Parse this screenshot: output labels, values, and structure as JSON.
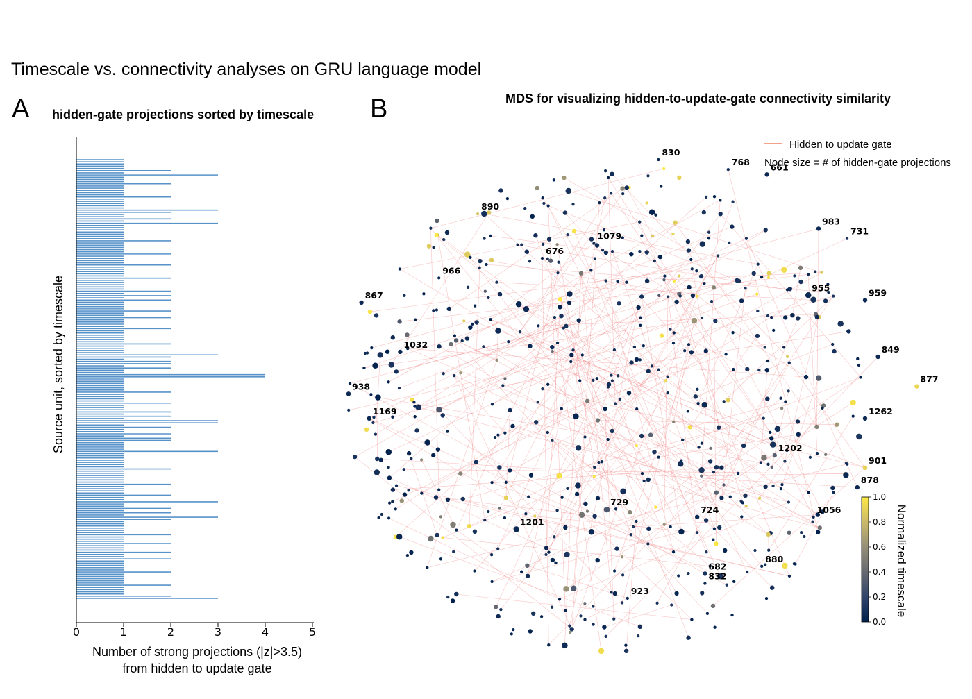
{
  "figure": {
    "title": "Timescale vs. connectivity analyses on GRU language model",
    "panels": [
      {
        "letter": "A",
        "title": "hidden-gate projections sorted by timescale"
      },
      {
        "letter": "B",
        "title": "MDS for visualizing hidden-to-update-gate connectivity similarity"
      }
    ]
  },
  "chart_data": [
    {
      "type": "bar",
      "orientation": "horizontal",
      "title": "hidden-gate projections sorted by timescale",
      "xlabel_lines": [
        "Number of strong projections (|z|>3.5)",
        "from hidden to update gate"
      ],
      "ylabel": "Source unit, sorted by timescale",
      "xlim": [
        0,
        5
      ],
      "xticks": [
        "0",
        "1",
        "2",
        "3",
        "4",
        "5"
      ],
      "color": "#3a80c0",
      "values": [
        1,
        1,
        1,
        1,
        1,
        2,
        1,
        3,
        1,
        1,
        1,
        2,
        1,
        1,
        1,
        1,
        1,
        2,
        1,
        1,
        1,
        1,
        1,
        3,
        2,
        1,
        1,
        2,
        1,
        3,
        1,
        1,
        1,
        1,
        1,
        1,
        1,
        2,
        1,
        1,
        1,
        1,
        1,
        2,
        1,
        1,
        1,
        1,
        2,
        1,
        1,
        1,
        1,
        1,
        2,
        1,
        1,
        1,
        1,
        1,
        2,
        1,
        2,
        1,
        2,
        1,
        1,
        1,
        1,
        2,
        1,
        1,
        2,
        1,
        1,
        1,
        1,
        2,
        1,
        1,
        1,
        1,
        1,
        1,
        2,
        1,
        1,
        1,
        1,
        3,
        2,
        1,
        2,
        2,
        1,
        2,
        1,
        1,
        4,
        4,
        1,
        1,
        1,
        1,
        1,
        1,
        2,
        1,
        1,
        1,
        1,
        2,
        1,
        1,
        1,
        2,
        1,
        2,
        1,
        3,
        3,
        1,
        2,
        1,
        1,
        2,
        1,
        2,
        2,
        1,
        1,
        1,
        1,
        3,
        1,
        1,
        1,
        1,
        1,
        1,
        1,
        2,
        1,
        1,
        1,
        1,
        1,
        1,
        2,
        1,
        1,
        1,
        1,
        2,
        1,
        1,
        3,
        1,
        1,
        2,
        1,
        2,
        1,
        3,
        2,
        1,
        1,
        1,
        1,
        1,
        1,
        2,
        1,
        1,
        1,
        2,
        1,
        1,
        1,
        2,
        1,
        1,
        2,
        1,
        1,
        1,
        1,
        1,
        2,
        1,
        1,
        1,
        1,
        1,
        2,
        1,
        1,
        1,
        1,
        2,
        3
      ]
    },
    {
      "type": "scatter",
      "subtype": "network-mds",
      "title": "MDS for visualizing hidden-to-update-gate connectivity similarity",
      "legend": {
        "line_label": "Hidden to update gate",
        "line_color": "#f4a08a",
        "size_note": "Node size = # of hidden-gate projections",
        "position": "top-right"
      },
      "colorbar": {
        "label": "Normalized timescale",
        "ticks": [
          "0.0",
          "0.2",
          "0.4",
          "0.6",
          "0.8",
          "1.0"
        ],
        "colormap": "cividis",
        "range": [
          0,
          1
        ]
      },
      "labeled_nodes": [
        {
          "id": "830",
          "x": 0.2,
          "y": 1.0,
          "timescale": 0.05,
          "projections": 1
        },
        {
          "id": "768",
          "x": 0.47,
          "y": 0.96,
          "timescale": 0.1,
          "projections": 1
        },
        {
          "id": "661",
          "x": 0.62,
          "y": 0.94,
          "timescale": 0.05,
          "projections": 2
        },
        {
          "id": "890",
          "x": -0.5,
          "y": 0.78,
          "timescale": 0.85,
          "projections": 1
        },
        {
          "id": "983",
          "x": 0.82,
          "y": 0.72,
          "timescale": 0.05,
          "projections": 2
        },
        {
          "id": "731",
          "x": 0.93,
          "y": 0.68,
          "timescale": 0.1,
          "projections": 1
        },
        {
          "id": "1079",
          "x": -0.05,
          "y": 0.66,
          "timescale": 0.1,
          "projections": 1
        },
        {
          "id": "676",
          "x": -0.25,
          "y": 0.6,
          "timescale": 0.05,
          "projections": 1
        },
        {
          "id": "966",
          "x": -0.65,
          "y": 0.52,
          "timescale": 0.05,
          "projections": 1
        },
        {
          "id": "955",
          "x": 0.78,
          "y": 0.45,
          "timescale": 0.05,
          "projections": 3
        },
        {
          "id": "959",
          "x": 1.0,
          "y": 0.43,
          "timescale": 0.05,
          "projections": 2
        },
        {
          "id": "867",
          "x": -0.95,
          "y": 0.42,
          "timescale": 0.05,
          "projections": 2
        },
        {
          "id": "1032",
          "x": -0.8,
          "y": 0.22,
          "timescale": 0.05,
          "projections": 2
        },
        {
          "id": "849",
          "x": 1.05,
          "y": 0.2,
          "timescale": 0.05,
          "projections": 2
        },
        {
          "id": "877",
          "x": 1.2,
          "y": 0.08,
          "timescale": 0.92,
          "projections": 2
        },
        {
          "id": "938",
          "x": -1.0,
          "y": 0.05,
          "timescale": 0.05,
          "projections": 2
        },
        {
          "id": "1169",
          "x": -0.92,
          "y": -0.05,
          "timescale": 0.05,
          "projections": 2
        },
        {
          "id": "1262",
          "x": 1.0,
          "y": -0.05,
          "timescale": 0.05,
          "projections": 2
        },
        {
          "id": "1202",
          "x": 0.65,
          "y": -0.2,
          "timescale": 0.35,
          "projections": 2
        },
        {
          "id": "901",
          "x": 1.0,
          "y": -0.25,
          "timescale": 0.9,
          "projections": 2
        },
        {
          "id": "878",
          "x": 0.97,
          "y": -0.33,
          "timescale": 0.05,
          "projections": 2
        },
        {
          "id": "729",
          "x": 0.0,
          "y": -0.42,
          "timescale": 0.3,
          "projections": 3
        },
        {
          "id": "724",
          "x": 0.35,
          "y": -0.45,
          "timescale": 0.05,
          "projections": 2
        },
        {
          "id": "1056",
          "x": 0.8,
          "y": -0.45,
          "timescale": 0.05,
          "projections": 1
        },
        {
          "id": "1201",
          "x": -0.35,
          "y": -0.5,
          "timescale": 0.05,
          "projections": 3
        },
        {
          "id": "880",
          "x": 0.6,
          "y": -0.65,
          "timescale": 0.05,
          "projections": 1
        },
        {
          "id": "682",
          "x": 0.38,
          "y": -0.68,
          "timescale": 0.1,
          "projections": 2
        },
        {
          "id": "832",
          "x": 0.38,
          "y": -0.72,
          "timescale": 0.05,
          "projections": 1
        },
        {
          "id": "923",
          "x": 0.08,
          "y": -0.78,
          "timescale": 0.05,
          "projections": 1
        }
      ],
      "unlabeled_node_count": 600
    }
  ]
}
